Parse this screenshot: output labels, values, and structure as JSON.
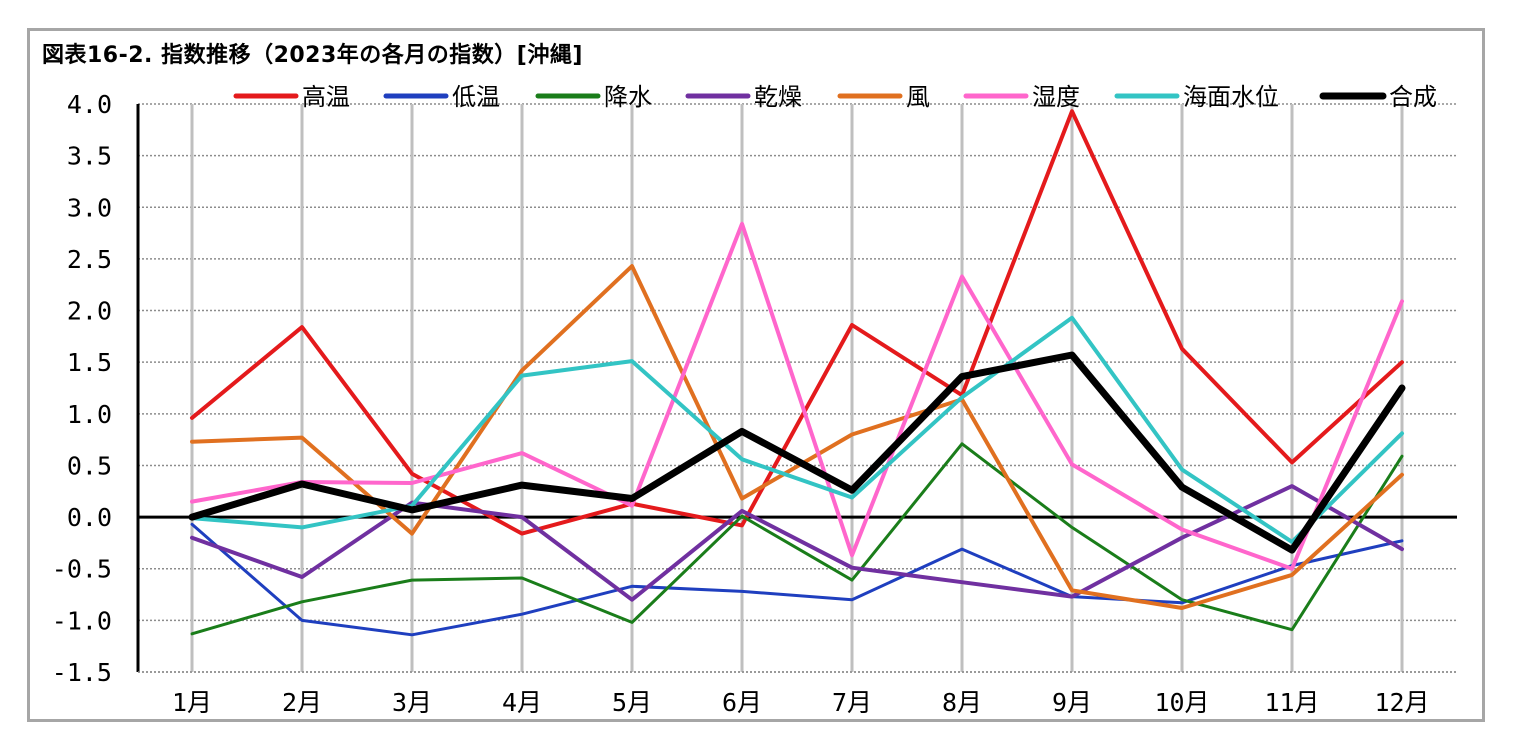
{
  "chart_data": {
    "type": "line",
    "title": "図表16-2. 指数推移（2023年の各月の指数）[沖縄]",
    "xlabel": "",
    "ylabel": "",
    "ylim": [
      -1.5,
      4.0
    ],
    "ytick_step": 0.5,
    "yticks": [
      "4.0",
      "3.5",
      "3.0",
      "2.5",
      "2.0",
      "1.5",
      "1.0",
      "0.5",
      "0.0",
      "-0.5",
      "-1.0",
      "-1.5"
    ],
    "categories": [
      "1月",
      "2月",
      "3月",
      "4月",
      "5月",
      "6月",
      "7月",
      "8月",
      "9月",
      "10月",
      "11月",
      "12月"
    ],
    "grid": true,
    "legend_position": "top",
    "series": [
      {
        "name": "高温",
        "color": "#e41a1c",
        "width": 4,
        "values": [
          0.96,
          1.84,
          0.42,
          -0.16,
          0.13,
          -0.08,
          1.86,
          1.18,
          3.93,
          1.63,
          0.53,
          1.5
        ]
      },
      {
        "name": "低温",
        "color": "#1f3fbf",
        "width": 3,
        "values": [
          -0.07,
          -1.0,
          -1.14,
          -0.94,
          -0.67,
          -0.72,
          -0.8,
          -0.31,
          -0.77,
          -0.83,
          -0.47,
          -0.23
        ]
      },
      {
        "name": "降水",
        "color": "#1a7d1a",
        "width": 3,
        "values": [
          -1.13,
          -0.82,
          -0.61,
          -0.59,
          -1.02,
          0.01,
          -0.61,
          0.71,
          -0.1,
          -0.8,
          -1.09,
          0.59
        ]
      },
      {
        "name": "乾燥",
        "color": "#7030a0",
        "width": 4,
        "values": [
          -0.2,
          -0.58,
          0.14,
          0.0,
          -0.8,
          0.06,
          -0.49,
          -0.63,
          -0.77,
          -0.2,
          0.3,
          -0.31
        ]
      },
      {
        "name": "風",
        "color": "#e07020",
        "width": 4,
        "values": [
          0.73,
          0.77,
          -0.16,
          1.42,
          2.43,
          0.18,
          0.8,
          1.14,
          -0.71,
          -0.88,
          -0.56,
          0.41
        ]
      },
      {
        "name": "湿度",
        "color": "#ff66cc",
        "width": 4,
        "values": [
          0.15,
          0.34,
          0.33,
          0.62,
          0.11,
          2.84,
          -0.37,
          2.33,
          0.51,
          -0.12,
          -0.5,
          2.09
        ]
      },
      {
        "name": "海面水位",
        "color": "#33c4c4",
        "width": 4,
        "values": [
          -0.01,
          -0.1,
          0.11,
          1.37,
          1.51,
          0.56,
          0.19,
          1.16,
          1.93,
          0.46,
          -0.24,
          0.81
        ]
      },
      {
        "name": "合成",
        "color": "#000000",
        "width": 7,
        "values": [
          0.0,
          0.32,
          0.07,
          0.31,
          0.18,
          0.83,
          0.26,
          1.36,
          1.57,
          0.29,
          -0.32,
          1.25
        ]
      }
    ]
  }
}
